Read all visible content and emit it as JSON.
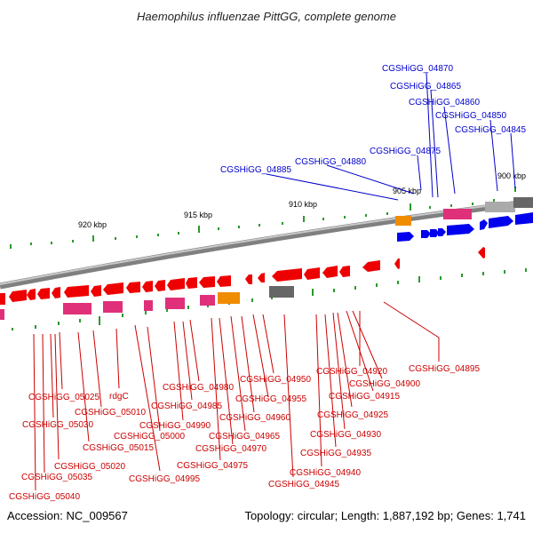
{
  "title": "Haemophilus influenzae PittGG, complete genome",
  "footer": {
    "accession": "Accession: NC_009567",
    "topology": "Topology: circular; Length: 1,887,192 bp; Genes: 1,741"
  },
  "scale_labels": [
    "920 kbp",
    "915 kbp",
    "910 kbp",
    "905 kbp",
    "900 kbp"
  ],
  "colors": {
    "forward_gene": "#0000ee",
    "reverse_gene": "#ee0000",
    "pink_feature": "#e0307a",
    "orange_feature": "#f08c00",
    "grey_feature": "#666666",
    "light_grey_feature": "#aaaaaa",
    "tick": "#2a9a2a",
    "label_red": "#cc0000",
    "label_blue": "#0000cc"
  },
  "gene_labels_forward": [
    "CGSHiGG_04870",
    "CGSHiGG_04865",
    "CGSHiGG_04860",
    "CGSHiGG_04850",
    "CGSHiGG_04845",
    "CGSHiGG_04875",
    "CGSHiGG_04880",
    "CGSHiGG_04885"
  ],
  "gene_labels_reverse": [
    "CGSHiGG_04895",
    "CGSHiGG_04920",
    "CGSHiGG_04900",
    "CGSHiGG_04915",
    "CGSHiGG_04950",
    "CGSHiGG_04955",
    "CGSHiGG_04925",
    "CGSHiGG_04980",
    "CGSHiGG_04960",
    "CGSHiGG_04930",
    "CGSHiGG_04985",
    "CGSHiGG_04965",
    "CGSHiGG_04935",
    "CGSHiGG_04990",
    "CGSHiGG_04970",
    "CGSHiGG_04975",
    "CGSHiGG_04940",
    "CGSHiGG_04995",
    "CGSHiGG_04945",
    "CGSHiGG_05025",
    "rdgC",
    "CGSHiGG_05010",
    "CGSHiGG_05030",
    "CGSHiGG_05015",
    "CGSHiGG_05000",
    "CGSHiGG_05020",
    "CGSHiGG_05035",
    "CGSHiGG_05040"
  ]
}
